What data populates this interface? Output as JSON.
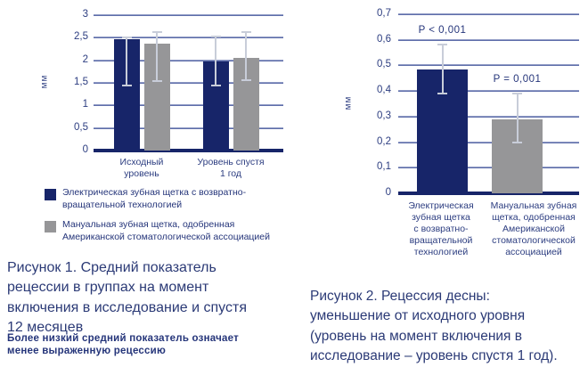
{
  "colors": {
    "navy": "#172569",
    "gray": "#969698",
    "whisker": "#c8cdd9",
    "grid_light": "#a9b2d2",
    "grid_dark": "#46589c",
    "text": "#2b3a76"
  },
  "legend": {
    "items": [
      {
        "color_key": "navy",
        "lines": [
          "Электрическая зубная щетка с возвратно-",
          "вращательной технологией"
        ]
      },
      {
        "color_key": "gray",
        "lines": [
          "Мануальная зубная щетка, одобренная",
          "Американской стоматологической ассоциацией"
        ]
      }
    ]
  },
  "figure1": {
    "caption_lines": [
      "Рисунок 1. Средний показатель",
      "рецессии в группах на момент",
      "включения в исследование и спустя",
      "12 месяцев"
    ],
    "note_lines": [
      "Более низкий средний показатель означает",
      "менее выраженную рецессию"
    ]
  },
  "figure2": {
    "caption_lines": [
      "Рисунок 2. Рецессия десны:",
      "уменьшение от исходного уровня",
      "(уровень на момент включения в",
      "исследование – уровень спустя 1 год)."
    ]
  },
  "chart_data": [
    {
      "type": "bar",
      "title": "Рисунок 1",
      "xlabel": "",
      "ylabel": "мм",
      "ylim": [
        0,
        3
      ],
      "yticks": [
        3,
        2.5,
        2,
        1.5,
        1,
        0.5,
        0
      ],
      "ytick_labels": [
        "3",
        "2,5",
        "2",
        "1,5",
        "1",
        "0,5",
        "0"
      ],
      "grid": true,
      "legend_position": "below",
      "categories": [
        "Исходный уровень",
        "Уровень спустя 1 год"
      ],
      "category_lines": [
        [
          "Исходный",
          "уровень"
        ],
        [
          "Уровень спустя",
          "1 год"
        ]
      ],
      "series": [
        {
          "name": "Электрическая зубная щетка с возвратно-вращательной технологией",
          "color_key": "navy",
          "values": [
            2.46,
            1.97
          ],
          "error_low": [
            1.45,
            1.44
          ],
          "error_high": [
            2.5,
            2.53
          ]
        },
        {
          "name": "Мануальная зубная щетка, одобренная Американской стоматологической ассоциацией",
          "color_key": "gray",
          "values": [
            2.36,
            2.05
          ],
          "error_low": [
            1.53,
            1.56
          ],
          "error_high": [
            2.62,
            2.63
          ]
        }
      ]
    },
    {
      "type": "bar",
      "title": "Рисунок 2",
      "xlabel": "",
      "ylabel": "мм",
      "ylim": [
        0,
        0.7
      ],
      "yticks": [
        0.7,
        0.6,
        0.5,
        0.4,
        0.3,
        0.2,
        0.1,
        0
      ],
      "ytick_labels": [
        "0,7",
        "0,6",
        "0,5",
        "0,4",
        "0,3",
        "0,2",
        "0,1",
        "0"
      ],
      "grid": true,
      "categories": [
        "Электрическая зубная щетка с возвратно-вращательной технологией",
        "Мануальная зубная щетка, одобренная Американской стоматологической ассоциацией"
      ],
      "category_lines": [
        [
          "Электрическая",
          "зубная щетка",
          "с возвратно-",
          "вращательной",
          "технологией"
        ],
        [
          "Мануальная зубная",
          "щетка, одобренная",
          "Американской",
          "стоматологической",
          "ассоциацией"
        ]
      ],
      "bar_colors": [
        "navy",
        "gray"
      ],
      "values": [
        0.485,
        0.29
      ],
      "error_low": [
        0.39,
        0.2
      ],
      "error_high": [
        0.58,
        0.39
      ],
      "annotations": [
        "P < 0,001",
        "P = 0,001"
      ]
    }
  ]
}
